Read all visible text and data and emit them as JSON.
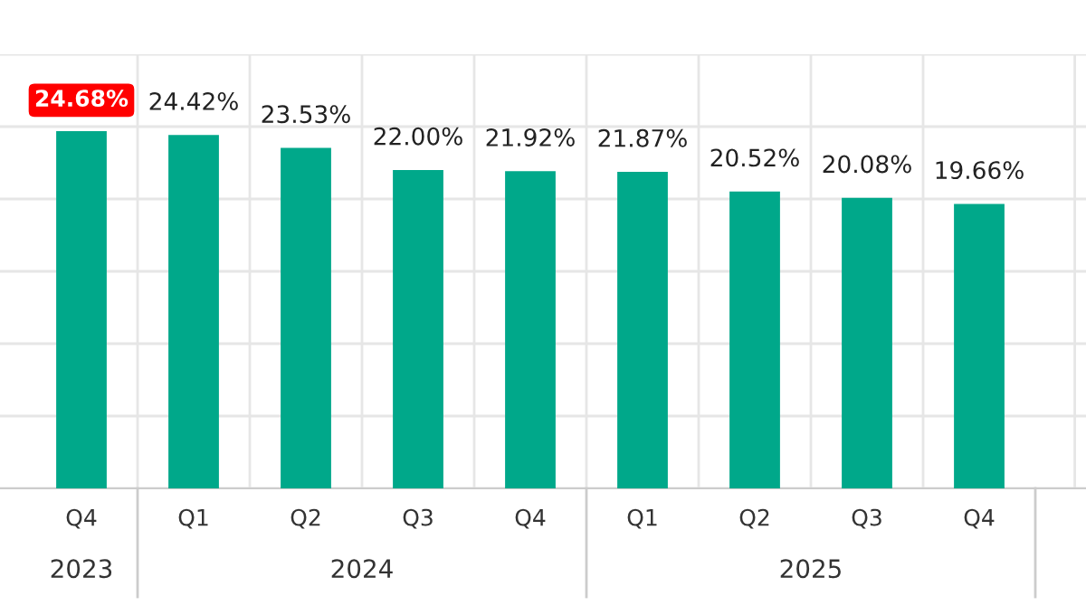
{
  "chart_data": {
    "type": "bar",
    "categories": [
      "Q4",
      "Q1",
      "Q2",
      "Q3",
      "Q4",
      "Q1",
      "Q2",
      "Q3",
      "Q4"
    ],
    "values": [
      24.68,
      24.42,
      23.53,
      22.0,
      21.92,
      21.87,
      20.52,
      20.08,
      19.66
    ],
    "color": "#00a88a",
    "value_labels": [
      "24.68%",
      "24.42%",
      "23.53%",
      "22.00%",
      "21.92%",
      "21.87%",
      "20.52%",
      "20.08%",
      "19.66%"
    ],
    "annotations": [
      "2023",
      "2024",
      "2025"
    ],
    "ylim": [
      0,
      30
    ],
    "yticks": [
      {
        "value": 0,
        "label": null
      },
      {
        "value": 5,
        "label": null
      },
      {
        "value": 10,
        "label": null
      },
      {
        "value": 15,
        "label": null
      },
      {
        "value": 20,
        "label": null
      },
      {
        "value": 25,
        "label": null
      },
      {
        "value": 30,
        "label": null
      }
    ],
    "tick_labels": "x",
    "grid": true,
    "legend": false
  }
}
